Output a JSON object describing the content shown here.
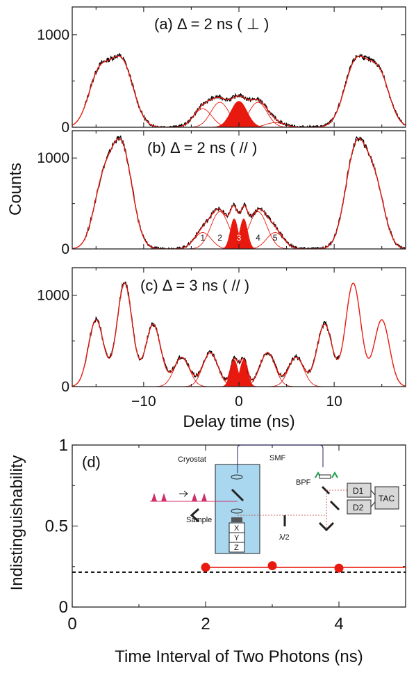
{
  "figure": {
    "y_axis_top": "Counts",
    "x_axis_top": "Delay time (ns)",
    "y_axis_bottom": "Indistinguishability",
    "x_axis_bottom": "Time Interval of Two Photons (ns)"
  },
  "inset": {
    "cryostat": "Cryostat",
    "smf": "SMF",
    "sample": "Sample",
    "stage_x": "X",
    "stage_y": "Y",
    "stage_z": "Z",
    "bpf": "BPF",
    "halfwave": "λ/2",
    "d1": "D1",
    "d2": "D2",
    "tac": "TAC"
  },
  "chart_data": [
    {
      "type": "line",
      "panel": "a",
      "title": "(a) Δ = 2 ns ( ⊥ )",
      "xlabel": "",
      "ylabel": "Counts",
      "xlim": [
        -17.5,
        17.5
      ],
      "ylim": [
        0,
        1300
      ],
      "yticks": [
        0,
        1000
      ],
      "xticks": [
        -10,
        0,
        10
      ],
      "fit_components": [
        {
          "center": -12.3,
          "amp": 700,
          "width": 1.2
        },
        {
          "center": -14.7,
          "amp": 560,
          "width": 1.1
        },
        {
          "center": 12.3,
          "amp": 700,
          "width": 1.2
        },
        {
          "center": 14.7,
          "amp": 560,
          "width": 1.1
        },
        {
          "center": -3.8,
          "amp": 200,
          "width": 0.95
        },
        {
          "center": -2.0,
          "amp": 270,
          "width": 0.95
        },
        {
          "center": 0.0,
          "amp": 280,
          "width": 0.85,
          "filled": true
        },
        {
          "center": 2.0,
          "amp": 270,
          "width": 0.95
        },
        {
          "center": 3.8,
          "amp": 50,
          "width": 0.95
        }
      ],
      "series": [
        {
          "name": "",
          "role": "measured counts",
          "color": "#000000"
        },
        {
          "name": "",
          "role": "fit",
          "color": "#e8190f"
        }
      ]
    },
    {
      "type": "line",
      "panel": "b",
      "title": "(b) Δ = 2 ns ( // )",
      "xlabel": "",
      "ylabel": "Counts",
      "xlim": [
        -17.5,
        17.5
      ],
      "ylim": [
        0,
        1300
      ],
      "yticks": [
        0,
        1000
      ],
      "xticks": [
        -10,
        0,
        10
      ],
      "peak_labels": [
        "1",
        "2",
        "3",
        "4",
        "5"
      ],
      "fit_components": [
        {
          "center": -12.3,
          "amp": 1100,
          "width": 1.1
        },
        {
          "center": -14.3,
          "amp": 650,
          "width": 1.0
        },
        {
          "center": 12.3,
          "amp": 1100,
          "width": 1.1
        },
        {
          "center": 14.3,
          "amp": 650,
          "width": 1.0
        },
        {
          "center": -3.8,
          "amp": 180,
          "width": 0.9
        },
        {
          "center": -2.0,
          "amp": 410,
          "width": 0.95
        },
        {
          "center": -0.5,
          "amp": 330,
          "width": 0.4,
          "filled": true
        },
        {
          "center": 0.5,
          "amp": 330,
          "width": 0.4,
          "filled": true
        },
        {
          "center": 2.0,
          "amp": 410,
          "width": 0.95
        },
        {
          "center": 3.8,
          "amp": 180,
          "width": 0.9
        }
      ],
      "series": [
        {
          "name": "",
          "role": "measured counts",
          "color": "#000000"
        },
        {
          "name": "",
          "role": "fit",
          "color": "#e8190f"
        }
      ]
    },
    {
      "type": "line",
      "panel": "c",
      "title": "(c) Δ = 3 ns ( // )",
      "xlabel": "Delay time (ns)",
      "ylabel": "Counts",
      "xlim": [
        -17.5,
        17.5
      ],
      "ylim": [
        0,
        1300
      ],
      "yticks": [
        0,
        1000
      ],
      "xticks": [
        -10,
        0,
        10
      ],
      "fit_components": [
        {
          "center": -12.0,
          "amp": 1130,
          "width": 0.8
        },
        {
          "center": -15.0,
          "amp": 730,
          "width": 0.8
        },
        {
          "center": -9.0,
          "amp": 680,
          "width": 0.8
        },
        {
          "center": -6.0,
          "amp": 320,
          "width": 0.8
        },
        {
          "center": -3.0,
          "amp": 370,
          "width": 0.8
        },
        {
          "center": -0.5,
          "amp": 290,
          "width": 0.4,
          "filled": true
        },
        {
          "center": 0.5,
          "amp": 290,
          "width": 0.4,
          "filled": true
        },
        {
          "center": 3.0,
          "amp": 370,
          "width": 0.8
        },
        {
          "center": 6.0,
          "amp": 320,
          "width": 0.8
        },
        {
          "center": 9.0,
          "amp": 680,
          "width": 0.8
        },
        {
          "center": 12.0,
          "amp": 1130,
          "width": 0.8
        },
        {
          "center": 15.0,
          "amp": 730,
          "width": 0.8
        }
      ],
      "series": [
        {
          "name": "",
          "role": "measured counts",
          "color": "#000000"
        },
        {
          "name": "",
          "role": "fit",
          "color": "#e8190f"
        }
      ]
    },
    {
      "type": "scatter",
      "panel": "d",
      "title": "(d)",
      "xlabel": "Time Interval of Two Photons (ns)",
      "ylabel": "Indistinguishability",
      "xlim": [
        0,
        5
      ],
      "ylim": [
        0,
        1
      ],
      "xticks": [
        0,
        2,
        4
      ],
      "yticks": [
        0,
        0.5,
        1
      ],
      "series": [
        {
          "name": "",
          "x": [
            2,
            3,
            4
          ],
          "y": [
            0.245,
            0.255,
            0.24
          ],
          "color": "#e8190f",
          "marker": "circle"
        }
      ],
      "fit_line": {
        "y": 0.245,
        "x_from": 2,
        "color": "#e8190f"
      },
      "reference_line": {
        "y": 0.215,
        "style": "dashed",
        "color": "#000000"
      }
    }
  ]
}
